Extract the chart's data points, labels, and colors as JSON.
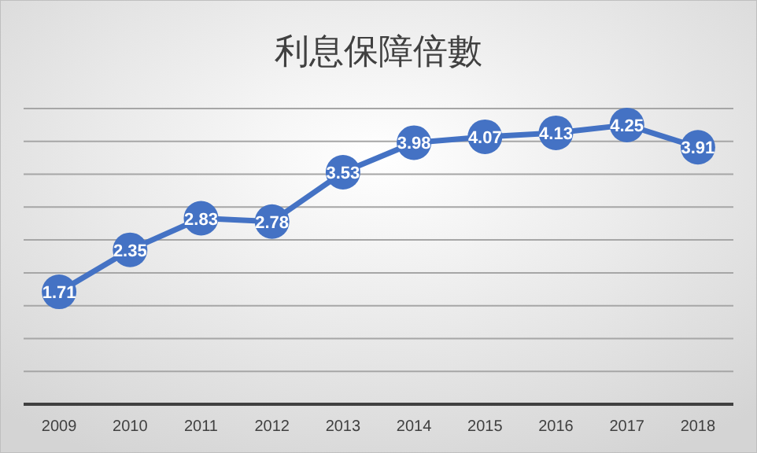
{
  "chart_data": {
    "type": "line",
    "title": "利息保障倍數",
    "categories": [
      "2009",
      "2010",
      "2011",
      "2012",
      "2013",
      "2014",
      "2015",
      "2016",
      "2017",
      "2018"
    ],
    "series": [
      {
        "color": "#4472c4",
        "values": [
          1.71,
          2.35,
          2.83,
          2.78,
          3.53,
          3.98,
          4.07,
          4.13,
          4.25,
          3.91
        ]
      }
    ],
    "ylim": [
      0,
      4.5
    ],
    "yticks": [
      {
        "value": 0,
        "label": null
      },
      {
        "value": 0.5,
        "label": null
      },
      {
        "value": 1,
        "label": null
      },
      {
        "value": 1.5,
        "label": null
      },
      {
        "value": 2,
        "label": null
      },
      {
        "value": 2.5,
        "label": null
      },
      {
        "value": 3,
        "label": null
      },
      {
        "value": 3.5,
        "label": null
      },
      {
        "value": 4,
        "label": null
      },
      {
        "value": 4.5,
        "label": null
      }
    ],
    "grid": "y",
    "data_labels": true,
    "marker": "circle",
    "line_style": "solid"
  }
}
